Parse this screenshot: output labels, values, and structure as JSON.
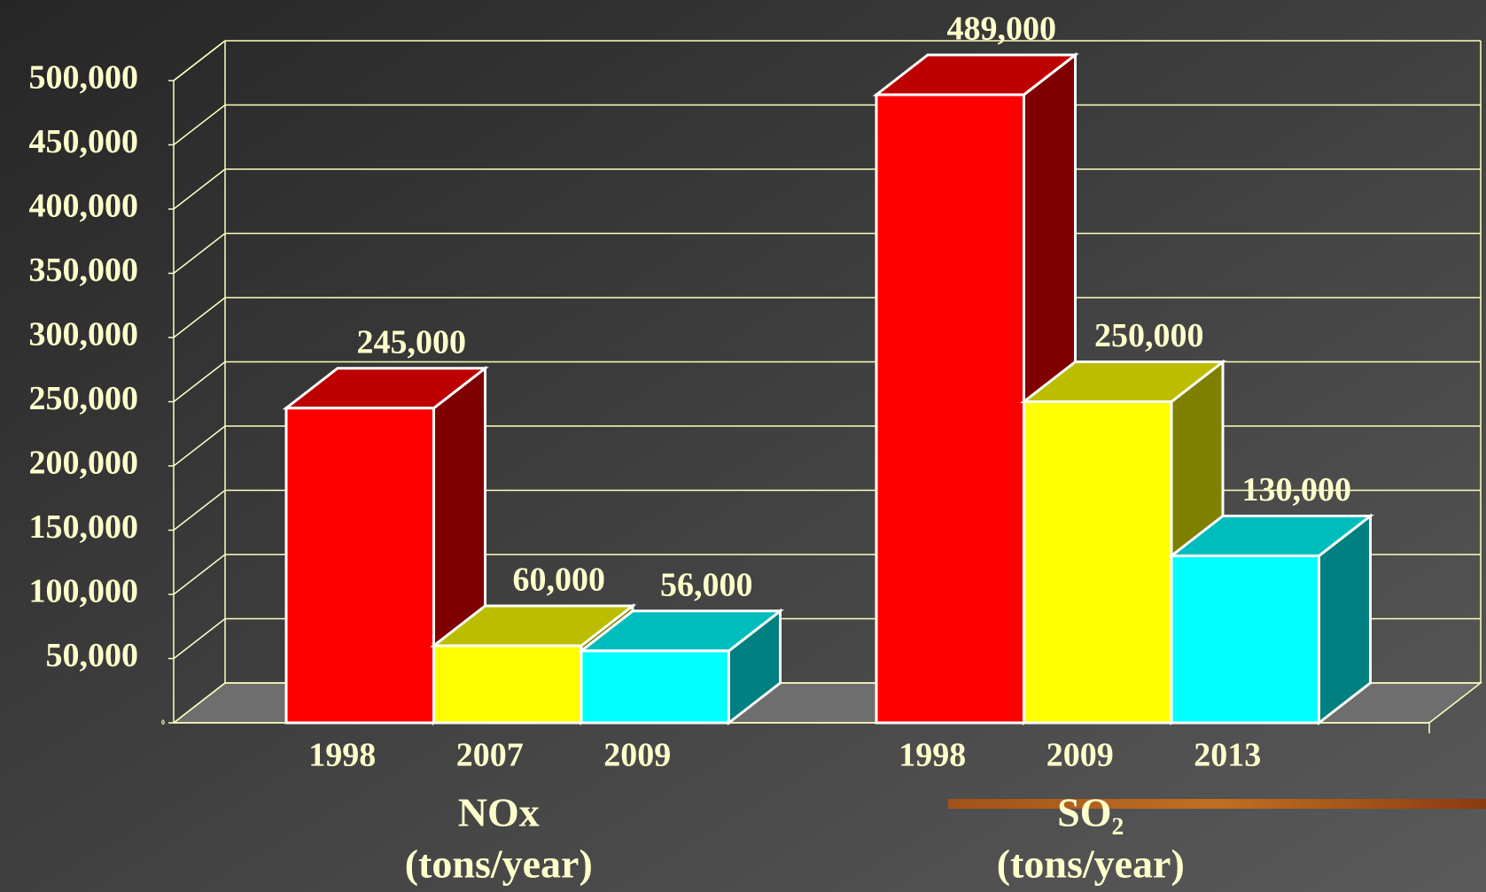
{
  "chart_data": {
    "type": "bar3d",
    "ylim": [
      0,
      500000
    ],
    "yticks": [
      {
        "value": 0,
        "label": "0"
      },
      {
        "value": 50000,
        "label": "50,000"
      },
      {
        "value": 100000,
        "label": "100,000"
      },
      {
        "value": 150000,
        "label": "150,000"
      },
      {
        "value": 200000,
        "label": "200,000"
      },
      {
        "value": 250000,
        "label": "250,000"
      },
      {
        "value": 300000,
        "label": "300,000"
      },
      {
        "value": 350000,
        "label": "350,000"
      },
      {
        "value": 400000,
        "label": "400,000"
      },
      {
        "value": 450000,
        "label": "450,000"
      },
      {
        "value": 500000,
        "label": "500,000"
      }
    ],
    "grid": true,
    "colors": [
      "#ff0000",
      "#ffff00",
      "#00ffff"
    ],
    "groups": [
      {
        "name": "NOx",
        "unit": "(tons/year)",
        "categories": [
          "1998",
          "2007",
          "2009"
        ],
        "values": [
          245000,
          60000,
          56000
        ],
        "value_labels": [
          "245,000",
          "60,000",
          "56,000"
        ]
      },
      {
        "name": "SO₂",
        "unit": "(tons/year)",
        "categories": [
          "1998",
          "2009",
          "2013"
        ],
        "values": [
          489000,
          250000,
          130000
        ],
        "value_labels": [
          "489,000",
          "250,000",
          "130,000"
        ]
      }
    ]
  }
}
